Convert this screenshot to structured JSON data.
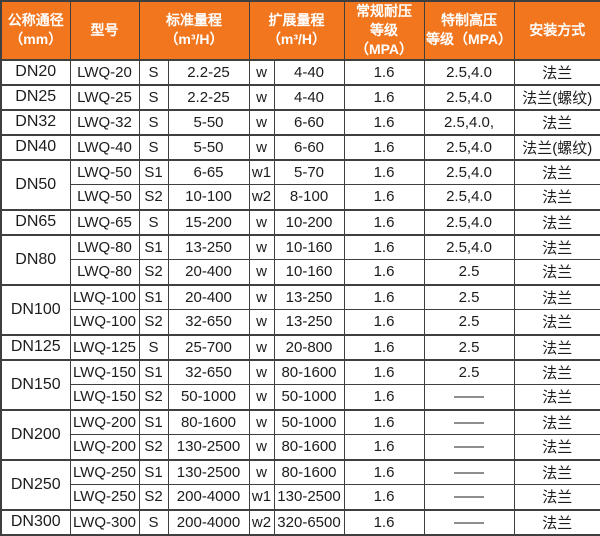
{
  "table": {
    "title_hint": "LWQ flow meter specification table",
    "accent_color": "#f1761e",
    "border_color": "#3f3f3f",
    "header": {
      "diameter": "公称通径\n（mm）",
      "model": "型号",
      "standard_range": "标准量程\n（m³/H）",
      "extended_range": "扩展量程\n（m³/H）",
      "normal_pressure": "常规耐压\n等级（MPA）",
      "high_pressure": "特制高压\n等级（MPA）",
      "installation": "安装方式"
    },
    "rows": [
      {
        "dn": "DN20",
        "dn_rowspan": 1,
        "model": "LWQ-20",
        "std_code": "S",
        "std_range": "2.2-25",
        "ext_code": "w",
        "ext_range": "4-40",
        "pressure": "1.6",
        "high_pressure": "2.5,4.0",
        "install": "法兰"
      },
      {
        "dn": "DN25",
        "dn_rowspan": 1,
        "model": "LWQ-25",
        "std_code": "S",
        "std_range": "2.2-25",
        "ext_code": "w",
        "ext_range": "4-40",
        "pressure": "1.6",
        "high_pressure": "2.5,4.0",
        "install": "法兰(螺纹)"
      },
      {
        "dn": "DN32",
        "dn_rowspan": 1,
        "model": "LWQ-32",
        "std_code": "S",
        "std_range": "5-50",
        "ext_code": "w",
        "ext_range": "6-60",
        "pressure": "1.6",
        "high_pressure": "2.5,4.0,",
        "install": "法兰"
      },
      {
        "dn": "DN40",
        "dn_rowspan": 1,
        "model": "LWQ-40",
        "std_code": "S",
        "std_range": "5-50",
        "ext_code": "w",
        "ext_range": "6-60",
        "pressure": "1.6",
        "high_pressure": "2.5,4.0",
        "install": "法兰(螺纹)"
      },
      {
        "dn": "DN50",
        "dn_rowspan": 2,
        "model": "LWQ-50",
        "std_code": "S1",
        "std_range": "6-65",
        "ext_code": "w1",
        "ext_range": "5-70",
        "pressure": "1.6",
        "high_pressure": "2.5,4.0",
        "install": "法兰"
      },
      {
        "model": "LWQ-50",
        "std_code": "S2",
        "std_range": "10-100",
        "ext_code": "w2",
        "ext_range": "8-100",
        "pressure": "1.6",
        "high_pressure": "2.5,4.0",
        "install": "法兰"
      },
      {
        "dn": "DN65",
        "dn_rowspan": 1,
        "model": "LWQ-65",
        "std_code": "S",
        "std_range": "15-200",
        "ext_code": "w",
        "ext_range": "10-200",
        "pressure": "1.6",
        "high_pressure": "2.5,4.0",
        "install": "法兰"
      },
      {
        "dn": "DN80",
        "dn_rowspan": 2,
        "model": "LWQ-80",
        "std_code": "S1",
        "std_range": "13-250",
        "ext_code": "w",
        "ext_range": "10-160",
        "pressure": "1.6",
        "high_pressure": "2.5,4.0",
        "install": "法兰"
      },
      {
        "model": "LWQ-80",
        "std_code": "S2",
        "std_range": "20-400",
        "ext_code": "w",
        "ext_range": "10-160",
        "pressure": "1.6",
        "high_pressure": "2.5",
        "install": "法兰"
      },
      {
        "dn": "DN100",
        "dn_rowspan": 2,
        "model": "LWQ-100",
        "std_code": "S1",
        "std_range": "20-400",
        "ext_code": "w",
        "ext_range": "13-250",
        "pressure": "1.6",
        "high_pressure": "2.5",
        "install": "法兰"
      },
      {
        "model": "LWQ-100",
        "std_code": "S2",
        "std_range": "32-650",
        "ext_code": "w",
        "ext_range": "13-250",
        "pressure": "1.6",
        "high_pressure": "2.5",
        "install": "法兰"
      },
      {
        "dn": "DN125",
        "dn_rowspan": 1,
        "model": "LWQ-125",
        "std_code": "S",
        "std_range": "25-700",
        "ext_code": "w",
        "ext_range": "20-800",
        "pressure": "1.6",
        "high_pressure": "2.5",
        "install": "法兰"
      },
      {
        "dn": "DN150",
        "dn_rowspan": 2,
        "model": "LWQ-150",
        "std_code": "S1",
        "std_range": "32-650",
        "ext_code": "w",
        "ext_range": "80-1600",
        "pressure": "1.6",
        "high_pressure": "2.5",
        "install": "法兰"
      },
      {
        "model": "LWQ-150",
        "std_code": "S2",
        "std_range": "50-1000",
        "ext_code": "w",
        "ext_range": "50-1000",
        "pressure": "1.6",
        "high_pressure": "——",
        "install": "法兰"
      },
      {
        "dn": "DN200",
        "dn_rowspan": 2,
        "model": "LWQ-200",
        "std_code": "S1",
        "std_range": "80-1600",
        "ext_code": "w",
        "ext_range": "50-1000",
        "pressure": "1.6",
        "high_pressure": "——",
        "install": "法兰"
      },
      {
        "model": "LWQ-200",
        "std_code": "S2",
        "std_range": "130-2500",
        "ext_code": "w",
        "ext_range": "80-1600",
        "pressure": "1.6",
        "high_pressure": "——",
        "install": "法兰"
      },
      {
        "dn": "DN250",
        "dn_rowspan": 2,
        "model": "LWQ-250",
        "std_code": "S1",
        "std_range": "130-2500",
        "ext_code": "w",
        "ext_range": "80-1600",
        "pressure": "1.6",
        "high_pressure": "——",
        "install": "法兰"
      },
      {
        "model": "LWQ-250",
        "std_code": "S2",
        "std_range": "200-4000",
        "ext_code": "w1",
        "ext_range": "130-2500",
        "pressure": "1.6",
        "high_pressure": "——",
        "install": "法兰"
      },
      {
        "dn": "DN300",
        "dn_rowspan": 1,
        "model": "LWQ-300",
        "std_code": "S",
        "std_range": "200-4000",
        "ext_code": "w2",
        "ext_range": "320-6500",
        "pressure": "1.6",
        "high_pressure": "——",
        "install": "法兰"
      }
    ]
  }
}
